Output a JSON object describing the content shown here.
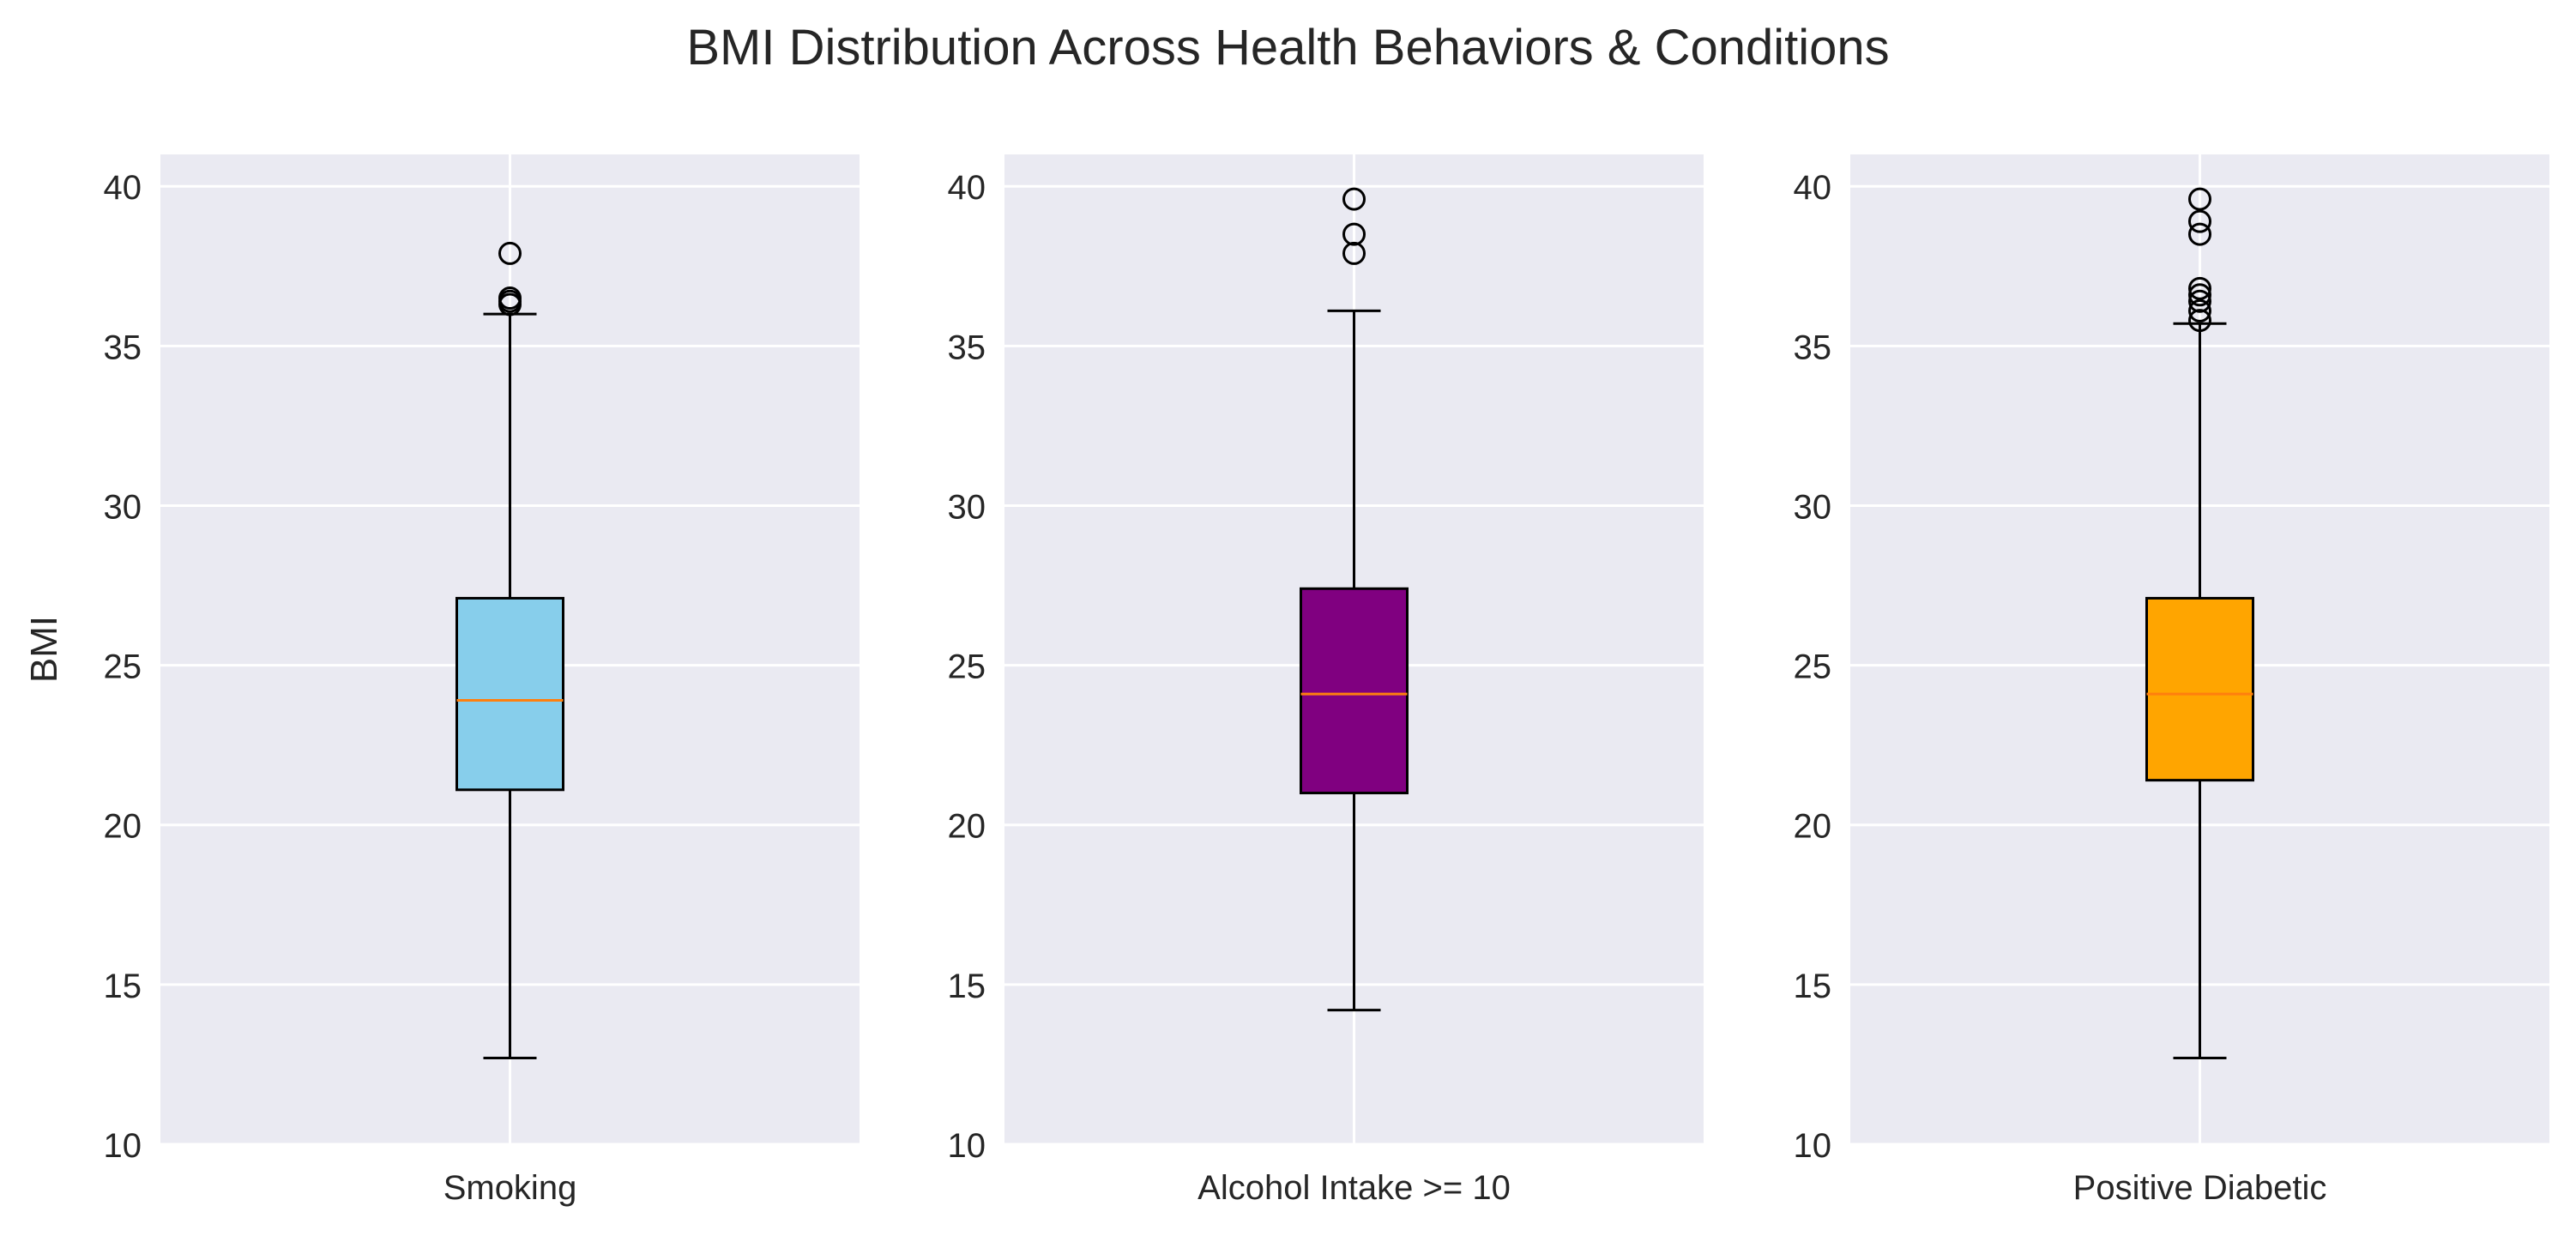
{
  "chart_data": {
    "type": "box",
    "title": "BMI Distribution Across Health Behaviors & Conditions",
    "ylabel": "BMI",
    "ylim": [
      10,
      41
    ],
    "yticks": [
      10,
      15,
      20,
      25,
      30,
      35,
      40
    ],
    "grid": true,
    "panels": [
      {
        "category": "Smoking",
        "color": "#87CEEB",
        "whisker_low": 12.7,
        "q1": 21.1,
        "median": 23.9,
        "q3": 27.1,
        "whisker_high": 36.0,
        "outliers": [
          36.3,
          36.4,
          36.5,
          37.9
        ]
      },
      {
        "category": "Alcohol Intake >= 10",
        "color": "#800080",
        "whisker_low": 14.2,
        "q1": 21.0,
        "median": 24.1,
        "q3": 27.4,
        "whisker_high": 36.1,
        "outliers": [
          37.9,
          38.5,
          39.6
        ]
      },
      {
        "category": "Positive Diabetic",
        "color": "#FFA500",
        "whisker_low": 12.7,
        "q1": 21.4,
        "median": 24.1,
        "q3": 27.1,
        "whisker_high": 35.7,
        "outliers": [
          35.8,
          36.1,
          36.4,
          36.6,
          36.8,
          38.5,
          38.9,
          39.6
        ]
      }
    ],
    "median_color": "#FF7F0E",
    "panel_background": "#EAEAF2"
  }
}
